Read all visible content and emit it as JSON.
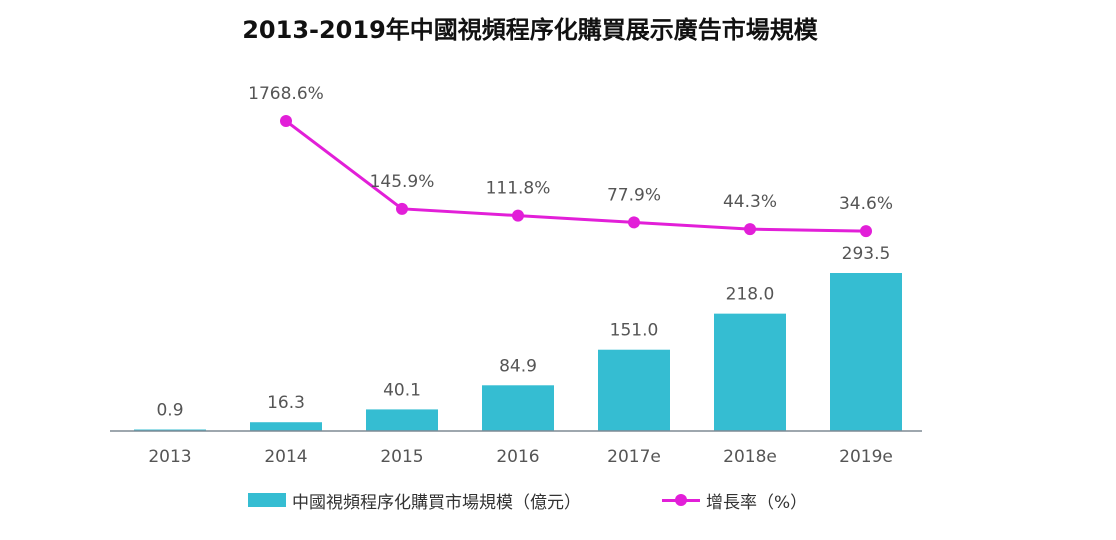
{
  "chart_data": {
    "type": "bar+line",
    "title": "2013-2019年中國視頻程序化購買展示廣告市場規模",
    "categories": [
      "2013",
      "2014",
      "2015",
      "2016",
      "2017e",
      "2018e",
      "2019e"
    ],
    "series": [
      {
        "name": "中國視頻程序化購買市場規模（億元）",
        "type": "bar",
        "color": "#35bdd2",
        "values": [
          0.9,
          16.3,
          40.1,
          84.9,
          151.0,
          218.0,
          293.5
        ],
        "labels": [
          "0.9",
          "16.3",
          "40.1",
          "84.9",
          "151.0",
          "218.0",
          "293.5"
        ]
      },
      {
        "name": "增長率（%）",
        "type": "line",
        "color": "#e21fd8",
        "values": [
          null,
          1768.6,
          145.9,
          111.8,
          77.9,
          44.3,
          34.6
        ],
        "labels": [
          null,
          "1768.6%",
          "145.9%",
          "111.8%",
          "77.9%",
          "44.3%",
          "34.6%"
        ]
      }
    ],
    "legend_position": "bottom",
    "grid": false
  }
}
